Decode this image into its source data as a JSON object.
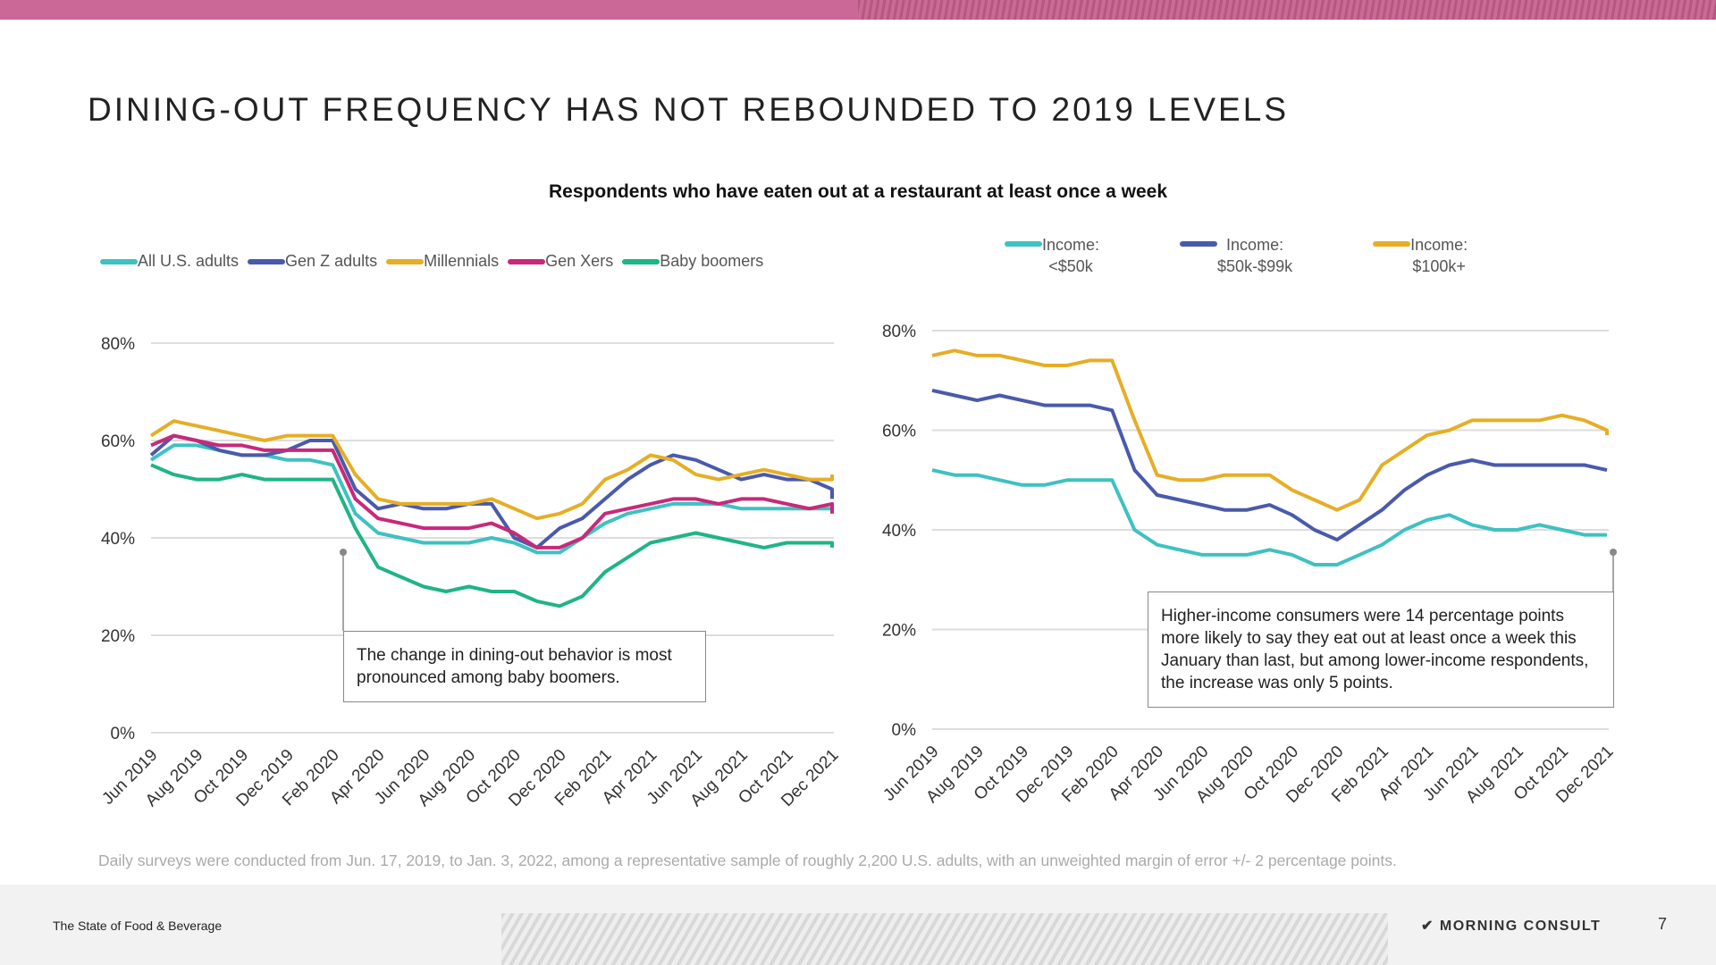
{
  "title": "DINING-OUT FREQUENCY HAS NOT REBOUNDED TO 2019 LEVELS",
  "subtitle": "Respondents who have eaten out at a restaurant at least once a week",
  "footnote": "Daily surveys were conducted from Jun. 17, 2019, to Jan. 3, 2022, among a representative sample of roughly 2,200 U.S. adults, with an unweighted margin of error +/- 2 percentage points.",
  "footer": {
    "brand": "The State of Food & Beverage",
    "logo": "MORNING CONSULT",
    "page": "7"
  },
  "chart_data": [
    {
      "type": "line",
      "title": "",
      "xlabel": "",
      "ylabel": "",
      "ylim": [
        0,
        80
      ],
      "yticks": [
        "0%",
        "20%",
        "40%",
        "60%",
        "80%"
      ],
      "grid": true,
      "legend": "top",
      "xticks": [
        "Jun 2019",
        "Aug 2019",
        "Oct 2019",
        "Dec 2019",
        "Feb 2020",
        "Apr 2020",
        "Jun 2020",
        "Aug 2020",
        "Oct 2020",
        "Dec 2020",
        "Feb 2021",
        "Apr 2021",
        "Jun 2021",
        "Aug 2021",
        "Oct 2021",
        "Dec 2021"
      ],
      "annotation": "The change in dining-out behavior is most pronounced among baby boomers.",
      "series": [
        {
          "name": "All U.S. adults",
          "color": "#3fc1c0",
          "values": [
            56,
            59,
            59,
            58,
            57,
            57,
            56,
            56,
            55,
            45,
            41,
            40,
            39,
            39,
            39,
            40,
            39,
            37,
            37,
            40,
            43,
            45,
            46,
            47,
            47,
            47,
            46,
            46,
            46,
            46,
            46,
            45
          ]
        },
        {
          "name": "Gen Z adults",
          "color": "#4a5aab",
          "values": [
            57,
            61,
            60,
            58,
            57,
            57,
            58,
            60,
            60,
            50,
            46,
            47,
            46,
            46,
            47,
            47,
            40,
            38,
            42,
            44,
            48,
            52,
            55,
            57,
            56,
            54,
            52,
            53,
            52,
            52,
            50,
            48
          ]
        },
        {
          "name": "Millennials",
          "color": "#e5ae26",
          "values": [
            61,
            64,
            63,
            62,
            61,
            60,
            61,
            61,
            61,
            53,
            48,
            47,
            47,
            47,
            47,
            48,
            46,
            44,
            45,
            47,
            52,
            54,
            57,
            56,
            53,
            52,
            53,
            54,
            53,
            52,
            52,
            53
          ]
        },
        {
          "name": "Gen Xers",
          "color": "#c8297a",
          "values": [
            59,
            61,
            60,
            59,
            59,
            58,
            58,
            58,
            58,
            48,
            44,
            43,
            42,
            42,
            42,
            43,
            41,
            38,
            38,
            40,
            45,
            46,
            47,
            48,
            48,
            47,
            48,
            48,
            47,
            46,
            47,
            45
          ]
        },
        {
          "name": "Baby boomers",
          "color": "#1fb487",
          "values": [
            55,
            53,
            52,
            52,
            53,
            52,
            52,
            52,
            52,
            42,
            34,
            32,
            30,
            29,
            30,
            29,
            29,
            27,
            26,
            28,
            33,
            36,
            39,
            40,
            41,
            40,
            39,
            38,
            39,
            39,
            39,
            38
          ]
        }
      ]
    },
    {
      "type": "line",
      "title": "",
      "xlabel": "",
      "ylabel": "",
      "ylim": [
        0,
        80
      ],
      "yticks": [
        "0%",
        "20%",
        "40%",
        "60%",
        "80%"
      ],
      "grid": true,
      "legend": "top",
      "xticks": [
        "Jun 2019",
        "Aug 2019",
        "Oct 2019",
        "Dec 2019",
        "Feb 2020",
        "Apr 2020",
        "Jun 2020",
        "Aug 2020",
        "Oct 2020",
        "Dec 2020",
        "Feb 2021",
        "Apr 2021",
        "Jun 2021",
        "Aug 2021",
        "Oct 2021",
        "Dec 2021"
      ],
      "annotation": "Higher-income consumers were 14 percentage points more likely to say they eat out at least once a week this January than last, but among lower-income respondents, the increase was only 5 points.",
      "series": [
        {
          "name": "Income: <$50k",
          "line1": "Income:",
          "line2": "<$50k",
          "color": "#3fc1c0",
          "values": [
            52,
            51,
            51,
            50,
            49,
            49,
            50,
            50,
            50,
            40,
            37,
            36,
            35,
            35,
            35,
            36,
            35,
            33,
            33,
            35,
            37,
            40,
            42,
            43,
            41,
            40,
            40,
            41,
            40,
            39,
            39,
            39
          ]
        },
        {
          "name": "Income: $50k-$99k",
          "line1": "Income:",
          "line2": "$50k-$99k",
          "color": "#4a5aab",
          "values": [
            68,
            67,
            66,
            67,
            66,
            65,
            65,
            65,
            64,
            52,
            47,
            46,
            45,
            44,
            44,
            45,
            43,
            40,
            38,
            41,
            44,
            48,
            51,
            53,
            54,
            53,
            53,
            53,
            53,
            53,
            52,
            52
          ]
        },
        {
          "name": "Income: $100k+",
          "line1": "Income:",
          "line2": "$100k+",
          "color": "#e5ae26",
          "values": [
            75,
            76,
            75,
            75,
            74,
            73,
            73,
            74,
            74,
            62,
            51,
            50,
            50,
            51,
            51,
            51,
            48,
            46,
            44,
            46,
            53,
            56,
            59,
            60,
            62,
            62,
            62,
            62,
            63,
            62,
            60,
            59
          ]
        }
      ]
    }
  ]
}
